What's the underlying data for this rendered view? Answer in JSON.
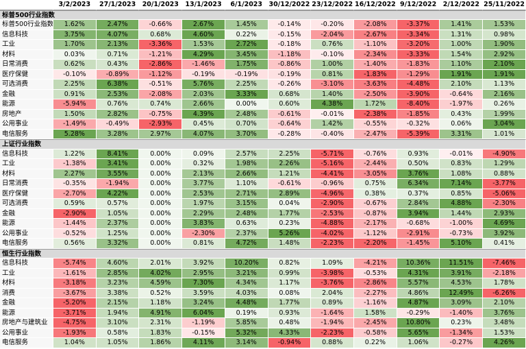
{
  "table": {
    "columns": [
      "3/2/2023",
      "27/1/2023",
      "20/1/2023",
      "13/1/2023",
      "6/1/2023",
      "30/12/2022",
      "23/12/2022",
      "16/12/2022",
      "9/12/2022",
      "2/12/2022",
      "25/11/2022"
    ],
    "sections": [
      {
        "title": "标普500行业指数",
        "rows": [
          {
            "label": "标普500行业指数",
            "values": [
              "1.62%",
              "2.47%",
              "-0.66%",
              "2.67%",
              "1.45%",
              "-0.14%",
              "-0.20%",
              "-2.08%",
              "-3.37%",
              "1.41%",
              "1.53%"
            ]
          },
          {
            "label": "信息科技",
            "values": [
              "3.75%",
              "4.07%",
              "0.68%",
              "4.60%",
              "0.22%",
              "-0.15%",
              "-2.04%",
              "-2.67%",
              "-3.34%",
              "1.31%",
              "0.98%"
            ]
          },
          {
            "label": "工业",
            "values": [
              "1.70%",
              "2.13%",
              "-3.36%",
              "1.53%",
              "2.72%",
              "-0.18%",
              "0.76%",
              "-1.10%",
              "-3.20%",
              "1.00%",
              "1.90%"
            ]
          },
          {
            "label": "材料",
            "values": [
              "0.03%",
              "0.71%",
              "-1.21%",
              "4.29%",
              "3.45%",
              "-1.18%",
              "-0.10%",
              "-2.34%",
              "-3.33%",
              "1.54%",
              "2.92%"
            ]
          },
          {
            "label": "日常消费",
            "values": [
              "0.62%",
              "0.43%",
              "-2.86%",
              "-1.46%",
              "1.75%",
              "-0.86%",
              "1.00%",
              "-1.40%",
              "-1.83%",
              "1.10%",
              "2.10%"
            ]
          },
          {
            "label": "医疗保健",
            "values": [
              "-0.10%",
              "-0.89%",
              "-1.12%",
              "-0.19%",
              "-0.19%",
              "-0.19%",
              "0.81%",
              "-1.83%",
              "-1.29%",
              "1.91%",
              "1.91%"
            ]
          },
          {
            "label": "可选消费",
            "values": [
              "2.25%",
              "6.38%",
              "-0.51%",
              "5.76%",
              "2.25%",
              "-0.26%",
              "-3.10%",
              "-3.63%",
              "-4.48%",
              "2.10%",
              "1.13%"
            ]
          },
          {
            "label": "金融",
            "values": [
              "0.91%",
              "2.53%",
              "-2.08%",
              "2.03%",
              "3.33%",
              "0.68%",
              "1.40%",
              "-2.50%",
              "-3.90%",
              "-0.64%",
              "2.16%"
            ]
          },
          {
            "label": "能源",
            "values": [
              "-5.94%",
              "0.76%",
              "0.74%",
              "2.66%",
              "0.00%",
              "0.60%",
              "4.38%",
              "1.72%",
              "-8.40%",
              "-1.97%",
              "0.26%"
            ]
          },
          {
            "label": "房地产",
            "values": [
              "1.50%",
              "2.82%",
              "-0.75%",
              "4.39%",
              "2.48%",
              "-0.61%",
              "-0.01%",
              "-2.38%",
              "-1.85%",
              "0.43%",
              "1.99%"
            ]
          },
          {
            "label": "公用事业",
            "values": [
              "-1.49%",
              "-0.49%",
              "-2.93%",
              "0.45%",
              "0.70%",
              "-0.64%",
              "1.42%",
              "-0.55%",
              "-0.32%",
              "0.06%",
              "3.04%"
            ]
          },
          {
            "label": "电信服务",
            "values": [
              "5.28%",
              "3.28%",
              "2.97%",
              "4.07%",
              "3.70%",
              "-0.28%",
              "-0.40%",
              "-2.47%",
              "-5.39%",
              "3.31%",
              "1.01%"
            ]
          }
        ]
      },
      {
        "title": "上证行业指数",
        "rows": [
          {
            "label": "信息科技",
            "values": [
              "1.22%",
              "8.41%",
              "0.00%",
              "0.09%",
              "2.57%",
              "2.25%",
              "-5.71%",
              "-0.76%",
              "0.93%",
              "-0.01%",
              "-4.90%"
            ]
          },
          {
            "label": "工业",
            "values": [
              "-1.38%",
              "3.41%",
              "0.00%",
              "0.32%",
              "1.98%",
              "2.26%",
              "-5.16%",
              "-2.44%",
              "0.50%",
              "0.83%",
              "1.29%"
            ]
          },
          {
            "label": "材料",
            "values": [
              "2.27%",
              "3.55%",
              "0.00%",
              "2.13%",
              "2.66%",
              "1.21%",
              "-4.41%",
              "-3.05%",
              "3.76%",
              "1.08%",
              "0.88%"
            ]
          },
          {
            "label": "日常消费",
            "values": [
              "-0.35%",
              "-1.94%",
              "0.00%",
              "3.77%",
              "1.10%",
              "-0.61%",
              "-0.96%",
              "0.75%",
              "6.34%",
              "7.14%",
              "-3.77%"
            ]
          },
          {
            "label": "医疗保健",
            "values": [
              "-2.70%",
              "4.22%",
              "0.00%",
              "2.53%",
              "2.71%",
              "2.89%",
              "-4.96%",
              "0.38%",
              "0.37%",
              "0.85%",
              "-5.06%"
            ]
          },
          {
            "label": "可选消费",
            "values": [
              "0.59%",
              "0.57%",
              "0.00%",
              "1.97%",
              "3.15%",
              "0.04%",
              "-2.90%",
              "-0.67%",
              "2.84%",
              "4.88%",
              "-2.30%"
            ]
          },
          {
            "label": "金融",
            "values": [
              "-2.90%",
              "1.05%",
              "0.00%",
              "2.29%",
              "2.48%",
              "1.77%",
              "-2.53%",
              "-0.87%",
              "3.94%",
              "1.44%",
              "2.93%"
            ]
          },
          {
            "label": "能源",
            "values": [
              "-1.44%",
              "2.37%",
              "0.00%",
              "3.83%",
              "0.63%",
              "0.23%",
              "-4.88%",
              "-2.17%",
              "-0.68%",
              "-1.00%",
              "4.69%"
            ]
          },
          {
            "label": "公用事业",
            "values": [
              "-0.52%",
              "1.25%",
              "0.00%",
              "-2.30%",
              "2.37%",
              "5.26%",
              "-4.02%",
              "-1.12%",
              "-2.91%",
              "-0.73%",
              "3.92%"
            ]
          },
          {
            "label": "电信服务",
            "values": [
              "0.56%",
              "3.32%",
              "0.00%",
              "0.81%",
              "4.72%",
              "1.48%",
              "-2.23%",
              "-2.20%",
              "-1.45%",
              "5.10%",
              "0.41%"
            ]
          }
        ]
      },
      {
        "title": "恒生行业指数",
        "rows": [
          {
            "label": "信息科技",
            "values": [
              "-5.74%",
              "4.60%",
              "2.01%",
              "3.92%",
              "10.20%",
              "0.82%",
              "1.09%",
              "-4.21%",
              "10.36%",
              "11.51%",
              "-7.46%"
            ]
          },
          {
            "label": "工业",
            "values": [
              "-1.61%",
              "2.85%",
              "4.02%",
              "2.95%",
              "3.21%",
              "0.99%",
              "-3.98%",
              "-0.53%",
              "4.31%",
              "3.91%",
              "-2.18%"
            ]
          },
          {
            "label": "材料",
            "values": [
              "-3.18%",
              "3.23%",
              "4.59%",
              "7.30%",
              "4.34%",
              "1.17%",
              "-3.76%",
              "-2.86%",
              "5.57%",
              "4.53%",
              "1.78%"
            ]
          },
          {
            "label": "消费",
            "values": [
              "-3.67%",
              "3.38%",
              "0.52%",
              "3.59%",
              "4.03%",
              "0.08%",
              "2.04%",
              "-2.27%",
              "4.86%",
              "12.49%",
              "-6.26%"
            ]
          },
          {
            "label": "金融",
            "values": [
              "-5.20%",
              "2.15%",
              "1.18%",
              "3.24%",
              "4.48%",
              "1.77%",
              "0.89%",
              "-1.16%",
              "4.87%",
              "3.09%",
              "2.10%"
            ]
          },
          {
            "label": "能源",
            "values": [
              "-3.71%",
              "1.94%",
              "4.91%",
              "6.04%",
              "0.19%",
              "0.93%",
              "-1.64%",
              "1.58%",
              "-0.29%",
              "-1.40%",
              "3.76%"
            ]
          },
          {
            "label": "房地产与建筑业",
            "values": [
              "-4.75%",
              "3.10%",
              "2.31%",
              "-1.19%",
              "5.85%",
              "0.48%",
              "-1.94%",
              "-2.45%",
              "10.80%",
              "0.23%",
              "3.48%"
            ]
          },
          {
            "label": "公用事业",
            "values": [
              "-1.93%",
              "0.58%",
              "1.83%",
              "-0.15%",
              "5.32%",
              "4.33%",
              "-2.23%",
              "-0.58%",
              "5.65%",
              "-1.34%",
              "1.53%"
            ]
          },
          {
            "label": "电信服务",
            "values": [
              "1.04%",
              "1.05%",
              "1.86%",
              "4.11%",
              "3.14%",
              "-0.94%",
              "0.88%",
              "0.22%",
              "1.06%",
              "-0.27%",
              "4.26%"
            ]
          }
        ]
      }
    ]
  }
}
